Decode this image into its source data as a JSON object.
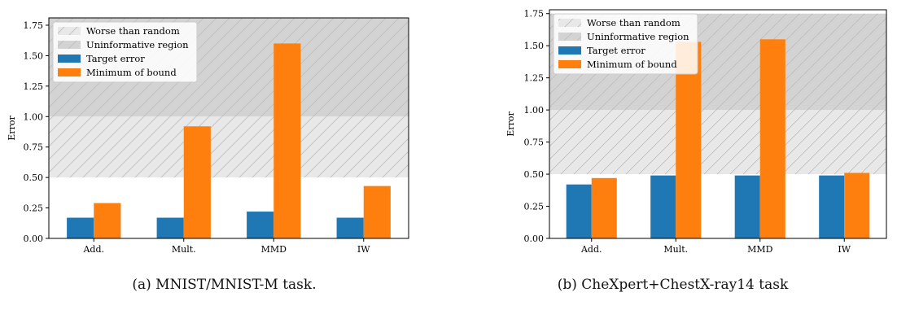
{
  "chart_data": [
    {
      "type": "bar",
      "caption": "(a) MNIST/MNIST-M task.",
      "categories": [
        "Add.",
        "Mult.",
        "MMD",
        "IW"
      ],
      "series": [
        {
          "name": "Target error",
          "color": "#1f77b4",
          "values": [
            0.17,
            0.17,
            0.22,
            0.17
          ]
        },
        {
          "name": "Minimum of bound",
          "color": "#ff7f0e",
          "values": [
            0.29,
            0.92,
            1.6,
            0.43
          ]
        }
      ],
      "regions": [
        {
          "name": "Worse than random",
          "range": [
            0.5,
            1.0
          ],
          "color": "#e8e8e8"
        },
        {
          "name": "Uninformative region",
          "range": [
            1.0,
            1.81
          ],
          "color": "#d3d3d3"
        }
      ],
      "ylabel": "Error",
      "ylim": [
        0,
        1.81
      ],
      "yticks": [
        "0.00",
        "0.25",
        "0.50",
        "0.75",
        "1.00",
        "1.25",
        "1.50",
        "1.75"
      ],
      "legend": "top-left"
    },
    {
      "type": "bar",
      "caption": "(b) CheXpert+ChestX-ray14 task",
      "categories": [
        "Add.",
        "Mult.",
        "MMD",
        "IW"
      ],
      "series": [
        {
          "name": "Target error",
          "color": "#1f77b4",
          "values": [
            0.42,
            0.49,
            0.49,
            0.49
          ]
        },
        {
          "name": "Minimum of bound",
          "color": "#ff7f0e",
          "values": [
            0.47,
            1.53,
            1.55,
            0.51
          ]
        }
      ],
      "regions": [
        {
          "name": "Worse than random",
          "range": [
            0.5,
            1.0
          ],
          "color": "#e8e8e8"
        },
        {
          "name": "Uninformative region",
          "range": [
            1.0,
            1.75
          ],
          "color": "#d3d3d3"
        }
      ],
      "ylabel": "Error",
      "ylim": [
        0,
        1.78
      ],
      "yticks": [
        "0.00",
        "0.25",
        "0.50",
        "0.75",
        "1.00",
        "1.25",
        "1.50",
        "1.75"
      ],
      "legend": "top-left"
    }
  ]
}
